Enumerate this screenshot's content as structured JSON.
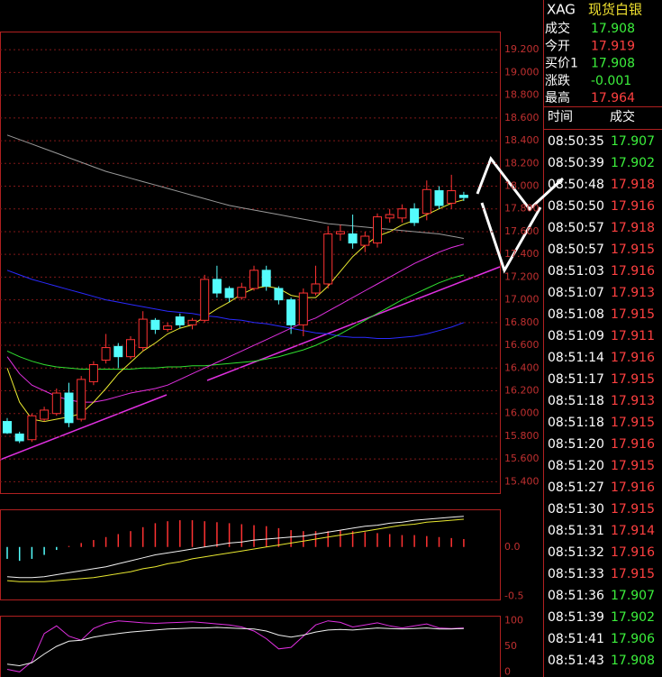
{
  "header": {
    "symbol": "XAG",
    "name": "现货白银"
  },
  "quote_panel": [
    {
      "label": "成交",
      "value": "17.908",
      "color": "#3cf03c"
    },
    {
      "label": "今开",
      "value": "17.919",
      "color": "#ff4040"
    },
    {
      "label": "买价1",
      "value": "17.908",
      "color": "#3cf03c"
    },
    {
      "label": "涨跌",
      "value": "-0.001",
      "color": "#3cf03c"
    },
    {
      "label": "最高",
      "value": "17.964",
      "color": "#ff4040"
    }
  ],
  "trades": {
    "columns": [
      "时间",
      "成交"
    ],
    "rows": [
      [
        "08:50:35",
        "17.907",
        "#3cf03c"
      ],
      [
        "08:50:39",
        "17.902",
        "#3cf03c"
      ],
      [
        "08:50:48",
        "17.918",
        "#ff4040"
      ],
      [
        "08:50:50",
        "17.916",
        "#ff4040"
      ],
      [
        "08:50:57",
        "17.918",
        "#ff4040"
      ],
      [
        "08:50:57",
        "17.915",
        "#ff4040"
      ],
      [
        "08:51:03",
        "17.916",
        "#ff4040"
      ],
      [
        "08:51:07",
        "17.913",
        "#ff4040"
      ],
      [
        "08:51:08",
        "17.915",
        "#ff4040"
      ],
      [
        "08:51:09",
        "17.911",
        "#ff4040"
      ],
      [
        "08:51:14",
        "17.916",
        "#ff4040"
      ],
      [
        "08:51:17",
        "17.915",
        "#ff4040"
      ],
      [
        "08:51:18",
        "17.913",
        "#ff4040"
      ],
      [
        "08:51:18",
        "17.915",
        "#ff4040"
      ],
      [
        "08:51:20",
        "17.916",
        "#ff4040"
      ],
      [
        "08:51:20",
        "17.915",
        "#ff4040"
      ],
      [
        "08:51:27",
        "17.916",
        "#ff4040"
      ],
      [
        "08:51:30",
        "17.915",
        "#ff4040"
      ],
      [
        "08:51:31",
        "17.914",
        "#ff4040"
      ],
      [
        "08:51:32",
        "17.916",
        "#ff4040"
      ],
      [
        "08:51:33",
        "17.915",
        "#ff4040"
      ],
      [
        "08:51:36",
        "17.907",
        "#3cf03c"
      ],
      [
        "08:51:39",
        "17.902",
        "#3cf03c"
      ],
      [
        "08:51:41",
        "17.906",
        "#3cf03c"
      ],
      [
        "08:51:43",
        "17.908",
        "#3cf03c"
      ]
    ]
  },
  "chart_data": [
    {
      "type": "candlestick",
      "up_color": "#ff3232",
      "down_color": "#54fcfc",
      "grid": true,
      "ylim": [
        15.3,
        19.36
      ],
      "yticks": [
        {
          "value": 15.4,
          "label": "15.400"
        },
        {
          "value": 15.6,
          "label": "15.600"
        },
        {
          "value": 15.8,
          "label": "15.800"
        },
        {
          "value": 16.0,
          "label": "16.000"
        },
        {
          "value": 16.2,
          "label": "16.200"
        },
        {
          "value": 16.4,
          "label": "16.400"
        },
        {
          "value": 16.6,
          "label": "16.600"
        },
        {
          "value": 16.8,
          "label": "16.800"
        },
        {
          "value": 17.0,
          "label": "17.000"
        },
        {
          "value": 17.2,
          "label": "17.200"
        },
        {
          "value": 17.4,
          "label": "17.400"
        },
        {
          "value": 17.6,
          "label": "17.600"
        },
        {
          "value": 17.8,
          "label": "17.800"
        },
        {
          "value": 18.0,
          "label": "18.000"
        },
        {
          "value": 18.2,
          "label": "18.200"
        },
        {
          "value": 18.4,
          "label": "18.400"
        },
        {
          "value": 18.6,
          "label": "18.600"
        },
        {
          "value": 18.8,
          "label": "18.800"
        },
        {
          "value": 19.0,
          "label": "19.000"
        },
        {
          "value": 19.2,
          "label": "19.200"
        }
      ],
      "candles": [
        [
          15.93,
          15.96,
          15.82,
          15.83
        ],
        [
          15.82,
          15.84,
          15.74,
          15.76
        ],
        [
          15.77,
          16.0,
          15.75,
          15.98
        ],
        [
          15.95,
          16.06,
          15.93,
          16.03
        ],
        [
          16.0,
          16.22,
          15.98,
          16.18
        ],
        [
          16.18,
          16.27,
          15.88,
          15.92
        ],
        [
          15.95,
          16.33,
          15.93,
          16.3
        ],
        [
          16.28,
          16.46,
          16.25,
          16.43
        ],
        [
          16.47,
          16.7,
          16.44,
          16.58
        ],
        [
          16.59,
          16.62,
          16.4,
          16.5
        ],
        [
          16.5,
          16.68,
          16.48,
          16.65
        ],
        [
          16.58,
          16.9,
          16.55,
          16.83
        ],
        [
          16.82,
          16.84,
          16.7,
          16.74
        ],
        [
          16.74,
          16.8,
          16.72,
          16.77
        ],
        [
          16.85,
          16.88,
          16.75,
          16.78
        ],
        [
          16.78,
          16.84,
          16.74,
          16.82
        ],
        [
          16.82,
          17.22,
          16.8,
          17.18
        ],
        [
          17.18,
          17.3,
          17.02,
          17.06
        ],
        [
          17.1,
          17.12,
          16.98,
          17.02
        ],
        [
          17.02,
          17.15,
          17.0,
          17.11
        ],
        [
          17.1,
          17.3,
          17.08,
          17.26
        ],
        [
          17.26,
          17.3,
          17.08,
          17.12
        ],
        [
          17.1,
          17.12,
          16.96,
          17.0
        ],
        [
          17.0,
          17.02,
          16.7,
          16.78
        ],
        [
          16.78,
          17.1,
          16.68,
          17.06
        ],
        [
          17.06,
          17.3,
          17.04,
          17.14
        ],
        [
          17.14,
          17.65,
          17.1,
          17.58
        ],
        [
          17.58,
          17.66,
          17.52,
          17.6
        ],
        [
          17.58,
          17.75,
          17.45,
          17.5
        ],
        [
          17.48,
          17.6,
          17.42,
          17.56
        ],
        [
          17.5,
          17.76,
          17.46,
          17.73
        ],
        [
          17.72,
          17.8,
          17.68,
          17.75
        ],
        [
          17.72,
          17.84,
          17.68,
          17.8
        ],
        [
          17.8,
          17.85,
          17.65,
          17.68
        ],
        [
          17.76,
          18.05,
          17.7,
          17.97
        ],
        [
          17.96,
          18.0,
          17.8,
          17.83
        ],
        [
          17.85,
          18.1,
          17.8,
          17.96
        ],
        [
          17.92,
          17.95,
          17.87,
          17.9
        ]
      ],
      "series": [
        {
          "color": "#9a9a9a",
          "values": [
            18.45,
            18.41,
            18.37,
            18.33,
            18.29,
            18.25,
            18.21,
            18.17,
            18.13,
            18.1,
            18.07,
            18.04,
            18.01,
            17.98,
            17.95,
            17.92,
            17.89,
            17.86,
            17.83,
            17.81,
            17.79,
            17.77,
            17.75,
            17.73,
            17.71,
            17.69,
            17.67,
            17.66,
            17.65,
            17.64,
            17.63,
            17.62,
            17.61,
            17.6,
            17.59,
            17.58,
            17.56,
            17.54
          ]
        },
        {
          "color": "#2a2aff",
          "values": [
            17.26,
            17.22,
            17.18,
            17.15,
            17.12,
            17.09,
            17.06,
            17.03,
            17.0,
            16.98,
            16.96,
            16.94,
            16.92,
            16.9,
            16.89,
            16.88,
            16.86,
            16.85,
            16.83,
            16.82,
            16.8,
            16.79,
            16.77,
            16.75,
            16.73,
            16.71,
            16.7,
            16.68,
            16.67,
            16.67,
            16.66,
            16.66,
            16.67,
            16.68,
            16.7,
            16.73,
            16.76,
            16.8
          ]
        },
        {
          "color": "#30e030",
          "values": [
            16.55,
            16.5,
            16.46,
            16.43,
            16.41,
            16.4,
            16.39,
            16.39,
            16.39,
            16.39,
            16.39,
            16.4,
            16.4,
            16.41,
            16.41,
            16.42,
            16.42,
            16.43,
            16.44,
            16.45,
            16.46,
            16.48,
            16.5,
            16.53,
            16.56,
            16.6,
            16.65,
            16.7,
            16.76,
            16.82,
            16.88,
            16.94,
            17.0,
            17.05,
            17.1,
            17.15,
            17.19,
            17.22
          ]
        },
        {
          "color": "#e030e0",
          "values": [
            16.5,
            16.35,
            16.25,
            16.2,
            16.15,
            16.12,
            16.1,
            16.1,
            16.12,
            16.15,
            16.18,
            16.2,
            16.22,
            16.25,
            16.3,
            16.35,
            16.4,
            16.45,
            16.5,
            16.55,
            16.6,
            16.65,
            16.7,
            16.75,
            16.8,
            16.84,
            16.9,
            16.96,
            17.02,
            17.08,
            17.14,
            17.2,
            17.26,
            17.32,
            17.37,
            17.42,
            17.46,
            17.49
          ]
        },
        {
          "color": "#e8e830",
          "values": [
            16.4,
            16.1,
            15.95,
            15.93,
            15.95,
            15.97,
            16.0,
            16.1,
            16.22,
            16.35,
            16.45,
            16.55,
            16.62,
            16.7,
            16.75,
            16.78,
            16.85,
            16.92,
            16.98,
            17.05,
            17.1,
            17.12,
            17.1,
            17.04,
            17.02,
            17.02,
            17.12,
            17.25,
            17.38,
            17.48,
            17.56,
            17.6,
            17.66,
            17.7,
            17.75,
            17.8,
            17.85,
            17.88
          ]
        }
      ]
    },
    {
      "type": "macd",
      "pos_color": "#ff3232",
      "neg_color": "#54fcfc",
      "ylim": [
        -0.53,
        0.38
      ],
      "yticks": [
        {
          "value": -0.5,
          "label": "-0.5"
        },
        {
          "value": 0,
          "label": "0.0"
        }
      ],
      "values": [
        -0.12,
        -0.14,
        -0.12,
        -0.08,
        -0.03,
        0.01,
        0.04,
        0.07,
        0.1,
        0.13,
        0.16,
        0.2,
        0.24,
        0.26,
        0.27,
        0.27,
        0.26,
        0.25,
        0.24,
        0.23,
        0.22,
        0.21,
        0.19,
        0.17,
        0.16,
        0.16,
        0.16,
        0.17,
        0.16,
        0.15,
        0.14,
        0.13,
        0.12,
        0.12,
        0.11,
        0.1,
        0.09,
        0.08
      ],
      "series": [
        {
          "color": "#f0f0f0",
          "values": [
            -0.3,
            -0.31,
            -0.31,
            -0.3,
            -0.28,
            -0.26,
            -0.24,
            -0.22,
            -0.2,
            -0.17,
            -0.14,
            -0.11,
            -0.08,
            -0.06,
            -0.04,
            -0.02,
            0.0,
            0.02,
            0.04,
            0.05,
            0.07,
            0.08,
            0.09,
            0.1,
            0.11,
            0.13,
            0.15,
            0.17,
            0.19,
            0.21,
            0.22,
            0.24,
            0.25,
            0.27,
            0.28,
            0.29,
            0.3,
            0.31
          ]
        },
        {
          "color": "#e8e830",
          "values": [
            -0.34,
            -0.35,
            -0.35,
            -0.35,
            -0.34,
            -0.33,
            -0.32,
            -0.31,
            -0.29,
            -0.27,
            -0.25,
            -0.22,
            -0.2,
            -0.17,
            -0.15,
            -0.12,
            -0.1,
            -0.08,
            -0.06,
            -0.04,
            -0.02,
            0.0,
            0.02,
            0.04,
            0.06,
            0.08,
            0.1,
            0.12,
            0.14,
            0.16,
            0.18,
            0.2,
            0.22,
            0.23,
            0.25,
            0.26,
            0.27,
            0.28
          ]
        }
      ]
    },
    {
      "type": "line",
      "ylim": [
        -10,
        110
      ],
      "yticks": [
        0,
        50,
        100
      ],
      "series": [
        {
          "color": "#e030e0",
          "values": [
            5,
            0,
            20,
            75,
            90,
            70,
            62,
            85,
            95,
            100,
            98,
            96,
            95,
            96,
            97,
            98,
            96,
            94,
            92,
            88,
            80,
            65,
            45,
            48,
            70,
            92,
            100,
            97,
            88,
            92,
            96,
            90,
            86,
            90,
            94,
            86,
            85,
            86
          ]
        },
        {
          "color": "#f0f0f0",
          "values": [
            15,
            12,
            18,
            35,
            50,
            60,
            62,
            68,
            72,
            75,
            78,
            80,
            82,
            84,
            85,
            86,
            86,
            87,
            86,
            85,
            84,
            80,
            72,
            68,
            72,
            78,
            82,
            83,
            82,
            84,
            86,
            85,
            84,
            85,
            86,
            84,
            84,
            85
          ]
        }
      ]
    }
  ]
}
